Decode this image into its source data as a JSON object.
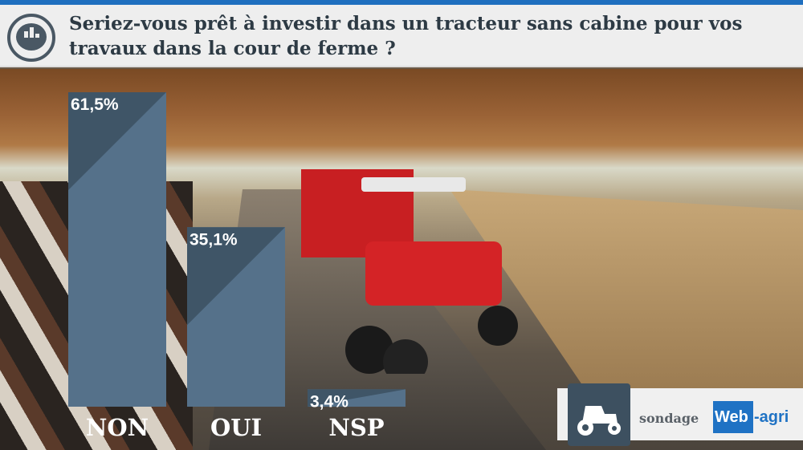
{
  "header": {
    "title": "Seriez-vous prêt à investir dans un tracteur sans cabine pour vos travaux dans la cour de ferme ?",
    "icon": "poll-chart-bubble-icon"
  },
  "chart_data": {
    "type": "bar",
    "title": "Seriez-vous prêt à investir dans un tracteur sans cabine pour vos travaux dans la cour de ferme ?",
    "categories": [
      "NON",
      "OUI",
      "NSP"
    ],
    "values": [
      61.5,
      35.1,
      3.4
    ],
    "value_labels": [
      "61,5%",
      "35,1%",
      "3,4%"
    ],
    "unit": "%",
    "ylim": [
      0,
      61.5
    ],
    "grid": false,
    "bar_color": "#55718a",
    "bar_shade_color": "#3f5567"
  },
  "brand": {
    "sondage": "sondage",
    "web": "Web",
    "agri": "-agri",
    "icon": "tractor-icon",
    "accent": "#1f72c4"
  }
}
